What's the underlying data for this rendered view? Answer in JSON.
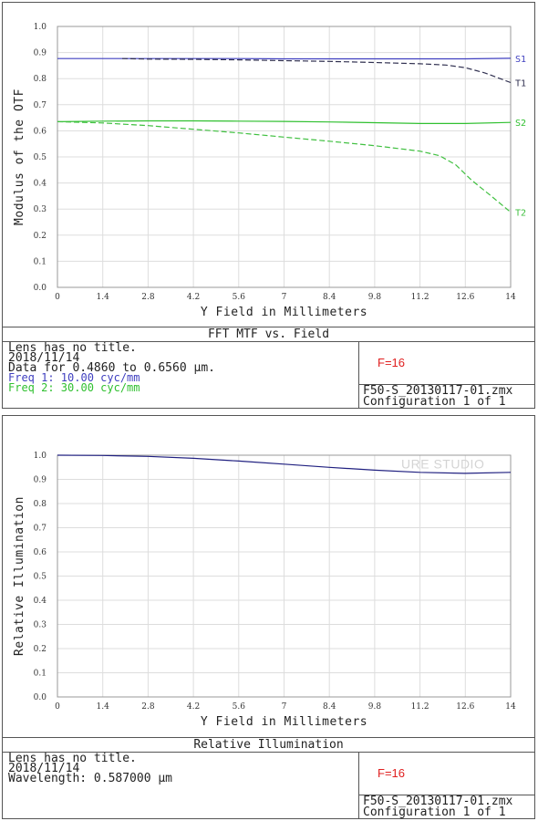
{
  "chart_data": [
    {
      "type": "line",
      "title": "FFT MTF vs. Field",
      "xlabel": "Y Field in Millimeters",
      "ylabel": "Modulus of the OTF",
      "xlim": [
        0,
        14
      ],
      "ylim": [
        0,
        1.0
      ],
      "x_ticks": [
        "0",
        "1.4",
        "2.8",
        "4.2",
        "5.6",
        "7",
        "8.4",
        "9.8",
        "11.2",
        "12.6",
        "14"
      ],
      "y_ticks": [
        "0.0",
        "0.1",
        "0.2",
        "0.3",
        "0.4",
        "0.5",
        "0.6",
        "0.7",
        "0.8",
        "0.9",
        "1.0"
      ],
      "grid": true,
      "series": [
        {
          "name": "S1",
          "color": "#4040c0",
          "style": "solid",
          "x": [
            0,
            1.4,
            2.8,
            4.2,
            5.6,
            7,
            8.4,
            9.8,
            11.2,
            12.6,
            14
          ],
          "values": [
            0.877,
            0.877,
            0.877,
            0.877,
            0.877,
            0.876,
            0.876,
            0.876,
            0.876,
            0.876,
            0.878
          ]
        },
        {
          "name": "T1",
          "color": "#303050",
          "style": "dashed",
          "x": [
            2,
            2.8,
            4.2,
            5.6,
            7,
            8.4,
            9.8,
            11.2,
            12,
            12.6,
            13.2,
            14
          ],
          "values": [
            0.877,
            0.875,
            0.874,
            0.872,
            0.869,
            0.866,
            0.862,
            0.857,
            0.852,
            0.842,
            0.822,
            0.785
          ]
        },
        {
          "name": "S2",
          "color": "#30c030",
          "style": "solid",
          "x": [
            0,
            1.4,
            2.8,
            4.2,
            5.6,
            7,
            8.4,
            9.8,
            11.2,
            12.6,
            14
          ],
          "values": [
            0.635,
            0.637,
            0.638,
            0.638,
            0.637,
            0.636,
            0.634,
            0.631,
            0.628,
            0.628,
            0.632
          ]
        },
        {
          "name": "T2",
          "color": "#40c040",
          "style": "dashed",
          "x": [
            0,
            1.4,
            2.8,
            4.2,
            5.6,
            7,
            8.4,
            9.8,
            11.2,
            11.8,
            12.3,
            12.8,
            13.4,
            14
          ],
          "values": [
            0.635,
            0.63,
            0.62,
            0.606,
            0.592,
            0.576,
            0.56,
            0.543,
            0.522,
            0.505,
            0.47,
            0.41,
            0.35,
            0.288
          ]
        }
      ],
      "info": {
        "lines": [
          "Lens has no title.",
          "2018/11/14",
          "Data for 0.4860 to 0.6560 µm.",
          "Freq 1:   10.00 cyc/mm",
          "Freq 2:   30.00 cyc/mm"
        ],
        "freq_colors": [
          "#4040c0",
          "#30c030"
        ],
        "f_number": "F=16",
        "file": "F50-S_20130117-01.zmx",
        "config": "Configuration 1 of 1"
      }
    },
    {
      "type": "line",
      "title": "Relative Illumination",
      "xlabel": "Y Field in Millimeters",
      "ylabel": "Relative Illumination",
      "xlim": [
        0,
        14
      ],
      "ylim": [
        0,
        1.0
      ],
      "x_ticks": [
        "0",
        "1.4",
        "2.8",
        "4.2",
        "5.6",
        "7",
        "8.4",
        "9.8",
        "11.2",
        "12.6",
        "14"
      ],
      "y_ticks": [
        "0.0",
        "0.1",
        "0.2",
        "0.3",
        "0.4",
        "0.5",
        "0.6",
        "0.7",
        "0.8",
        "0.9",
        "1.0"
      ],
      "grid": true,
      "watermark": "URE STUDIO",
      "series": [
        {
          "color": "#202080",
          "style": "solid",
          "x": [
            0,
            1.4,
            2.8,
            4.2,
            5.6,
            7,
            8.4,
            9.8,
            11.2,
            12.6,
            14
          ],
          "values": [
            1.0,
            0.999,
            0.995,
            0.987,
            0.976,
            0.963,
            0.95,
            0.938,
            0.929,
            0.925,
            0.929
          ]
        }
      ],
      "info": {
        "lines": [
          "Lens has no title.",
          "2018/11/14",
          "Wavelength: 0.587000 µm"
        ],
        "f_number": "F=16",
        "file": "F50-S_20130117-01.zmx",
        "config": "Configuration 1 of 1"
      }
    }
  ]
}
